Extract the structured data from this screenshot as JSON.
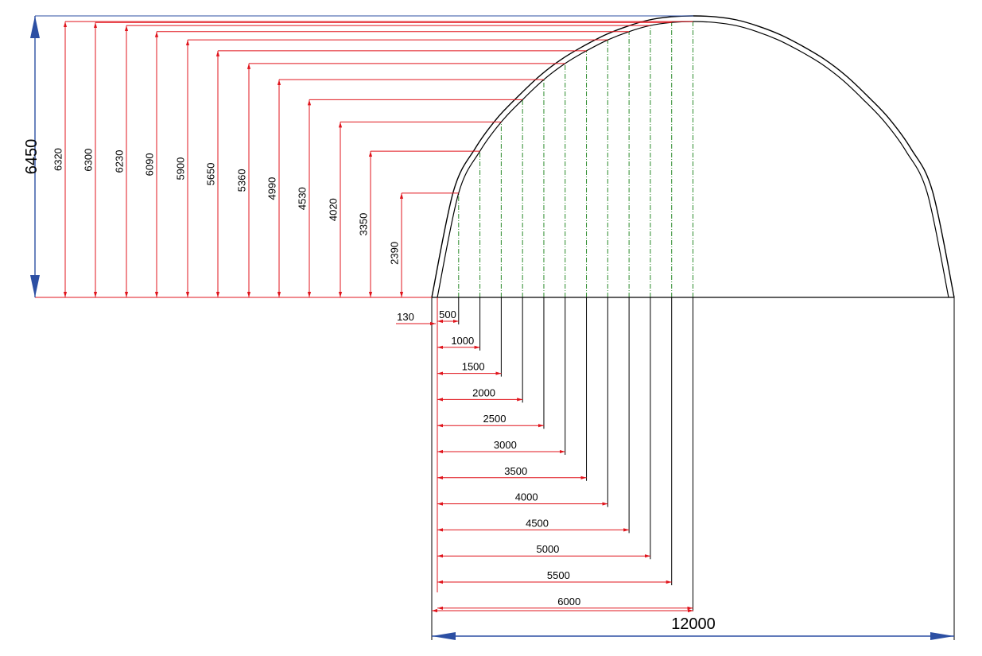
{
  "drawing": {
    "colors": {
      "dimension_red": "#e0141c",
      "outline_black": "#000000",
      "arrow_blue": "#2c4fa3",
      "guide_green": "#2a8a2a"
    },
    "total_height_label": "6450",
    "total_width_label": "12000",
    "offset_label": "130",
    "heights": [
      {
        "x_mm": 500,
        "h_mm": 2390,
        "label": "2390"
      },
      {
        "x_mm": 1000,
        "h_mm": 3350,
        "label": "3350"
      },
      {
        "x_mm": 1500,
        "h_mm": 4020,
        "label": "4020"
      },
      {
        "x_mm": 2000,
        "h_mm": 4530,
        "label": "4530"
      },
      {
        "x_mm": 2500,
        "h_mm": 4990,
        "label": "4990"
      },
      {
        "x_mm": 3000,
        "h_mm": 5360,
        "label": "5360"
      },
      {
        "x_mm": 3500,
        "h_mm": 5650,
        "label": "5650"
      },
      {
        "x_mm": 4000,
        "h_mm": 5900,
        "label": "5900"
      },
      {
        "x_mm": 4500,
        "h_mm": 6090,
        "label": "6090"
      },
      {
        "x_mm": 5000,
        "h_mm": 6230,
        "label": "6230"
      },
      {
        "x_mm": 5500,
        "h_mm": 6300,
        "label": "6300"
      },
      {
        "x_mm": 6000,
        "h_mm": 6320,
        "label": "6320"
      }
    ],
    "widths": [
      "500",
      "1000",
      "1500",
      "2000",
      "2500",
      "3000",
      "3500",
      "4000",
      "4500",
      "5000",
      "5500",
      "6000"
    ]
  }
}
